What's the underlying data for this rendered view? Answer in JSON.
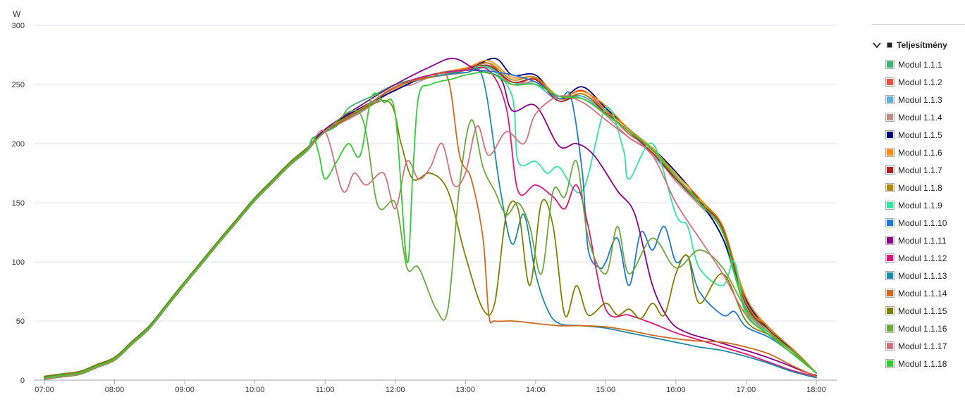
{
  "chart_data": {
    "type": "line",
    "unit_label": "W",
    "ylim": [
      0,
      300
    ],
    "yticks": [
      0,
      50,
      100,
      150,
      200,
      250,
      300
    ],
    "xlim": [
      "07:00",
      "18:10"
    ],
    "xticks": [
      "07:00",
      "08:00",
      "09:00",
      "10:00",
      "11:00",
      "12:00",
      "13:00",
      "14:00",
      "15:00",
      "16:00",
      "17:00",
      "18:00"
    ],
    "grid": true,
    "legend_position": "right",
    "legend_group": "Teljesítmény",
    "base_curve": {
      "x": [
        "07:00",
        "07:30",
        "08:00",
        "08:30",
        "09:00",
        "09:30",
        "10:00",
        "10:30",
        "11:00",
        "11:30",
        "12:00",
        "12:30",
        "13:00",
        "13:30",
        "14:00",
        "14:30",
        "15:00",
        "15:30",
        "16:00",
        "16:30",
        "17:00",
        "17:30",
        "18:00",
        "18:10"
      ],
      "y": [
        2,
        6,
        18,
        45,
        82,
        118,
        153,
        183,
        208,
        228,
        247,
        255,
        262,
        262,
        254,
        242,
        228,
        210,
        175,
        150,
        70,
        40,
        6,
        0
      ]
    },
    "series": [
      {
        "name": "Modul 1.1.1",
        "color": "#3cb371",
        "x": [
          "10:50",
          "11:10",
          "11:20",
          "11:40",
          "12:00",
          "12:20",
          "12:40",
          "13:00",
          "13:20",
          "13:40",
          "14:00",
          "14:20",
          "14:40",
          "15:00",
          "15:20",
          "15:40",
          "16:00",
          "16:20",
          "16:40",
          "17:00",
          "17:20",
          "17:40",
          "18:00"
        ],
        "y": [
          205,
          215,
          230,
          240,
          250,
          255,
          258,
          262,
          265,
          250,
          255,
          240,
          240,
          225,
          210,
          195,
          170,
          150,
          120,
          60,
          40,
          25,
          6
        ]
      },
      {
        "name": "Modul 1.1.2",
        "color": "#e8503a",
        "x": [
          "11:00",
          "11:30",
          "12:00",
          "12:30",
          "13:00",
          "13:20",
          "13:40",
          "14:00",
          "14:20",
          "14:40",
          "15:00",
          "15:20",
          "15:40",
          "16:00",
          "16:20",
          "16:40",
          "17:00",
          "17:20",
          "17:40",
          "18:00"
        ],
        "y": [
          210,
          228,
          248,
          258,
          263,
          268,
          250,
          255,
          238,
          245,
          228,
          208,
          195,
          172,
          150,
          130,
          65,
          42,
          25,
          6
        ]
      },
      {
        "name": "Modul 1.1.3",
        "color": "#5dade2",
        "x": [
          "11:00",
          "11:30",
          "12:00",
          "12:30",
          "13:00",
          "13:20",
          "13:40",
          "14:00",
          "14:20",
          "14:40",
          "15:00",
          "15:20",
          "15:40",
          "16:00",
          "16:20",
          "16:40",
          "17:00",
          "17:20",
          "17:40",
          "18:00"
        ],
        "y": [
          210,
          227,
          247,
          256,
          262,
          266,
          252,
          250,
          236,
          240,
          225,
          210,
          190,
          170,
          148,
          125,
          62,
          40,
          24,
          6
        ]
      },
      {
        "name": "Modul 1.1.4",
        "color": "#c48a8a",
        "x": [
          "11:00",
          "11:30",
          "12:00",
          "12:15",
          "12:30",
          "13:00",
          "13:20",
          "13:40",
          "14:00",
          "14:20",
          "14:40",
          "15:00",
          "15:20",
          "15:40",
          "16:00",
          "16:20",
          "16:40",
          "17:00",
          "17:20",
          "17:40",
          "18:00"
        ],
        "y": [
          210,
          226,
          246,
          250,
          256,
          260,
          264,
          250,
          252,
          238,
          238,
          224,
          205,
          192,
          168,
          148,
          125,
          60,
          40,
          24,
          6
        ]
      },
      {
        "name": "Modul 1.1.5",
        "color": "#000080",
        "x": [
          "11:00",
          "11:30",
          "12:00",
          "12:30",
          "13:00",
          "13:25",
          "13:40",
          "14:00",
          "14:20",
          "14:40",
          "15:00",
          "15:20",
          "15:40",
          "16:00",
          "16:20",
          "16:40",
          "17:00",
          "17:20",
          "17:40",
          "18:00"
        ],
        "y": [
          212,
          230,
          245,
          258,
          262,
          272,
          258,
          258,
          238,
          248,
          230,
          212,
          196,
          176,
          152,
          120,
          68,
          42,
          26,
          6
        ]
      },
      {
        "name": "Modul 1.1.6",
        "color": "#ff8c1a",
        "x": [
          "11:00",
          "11:30",
          "12:00",
          "12:30",
          "13:00",
          "13:20",
          "13:40",
          "14:00",
          "14:20",
          "14:40",
          "15:00",
          "15:20",
          "15:40",
          "16:00",
          "16:20",
          "16:40",
          "17:00",
          "17:20",
          "17:40",
          "18:00"
        ],
        "y": [
          211,
          229,
          247,
          258,
          264,
          270,
          256,
          256,
          240,
          244,
          232,
          212,
          196,
          174,
          154,
          128,
          70,
          44,
          26,
          6
        ]
      },
      {
        "name": "Modul 1.1.7",
        "color": "#b22222",
        "x": [
          "11:00",
          "11:30",
          "12:00",
          "12:30",
          "13:00",
          "13:20",
          "13:40",
          "14:00",
          "14:20",
          "14:40",
          "15:00",
          "15:20",
          "15:40",
          "16:00",
          "16:20",
          "16:40",
          "17:00",
          "17:20",
          "17:40",
          "18:00"
        ],
        "y": [
          210,
          228,
          248,
          258,
          262,
          266,
          252,
          254,
          236,
          242,
          226,
          210,
          192,
          170,
          150,
          128,
          64,
          42,
          24,
          6
        ]
      },
      {
        "name": "Modul 1.1.8",
        "color": "#b8860b",
        "x": [
          "11:00",
          "11:30",
          "12:00",
          "12:30",
          "13:00",
          "13:20",
          "13:40",
          "14:00",
          "14:20",
          "14:40",
          "15:00",
          "15:20",
          "15:40",
          "16:00",
          "16:20",
          "16:40",
          "17:00",
          "17:20",
          "17:40",
          "18:00"
        ],
        "y": [
          210,
          228,
          248,
          258,
          262,
          268,
          254,
          256,
          238,
          242,
          228,
          212,
          194,
          172,
          152,
          130,
          66,
          44,
          26,
          6
        ]
      },
      {
        "name": "Modul 1.1.9",
        "color": "#2ee89a",
        "x": [
          "11:00",
          "11:30",
          "12:00",
          "12:30",
          "13:00",
          "13:20",
          "13:40",
          "13:45",
          "14:00",
          "14:10",
          "14:20",
          "14:40",
          "15:00",
          "15:15",
          "15:20",
          "15:40",
          "16:00",
          "16:10",
          "16:20",
          "16:40",
          "16:50",
          "17:00",
          "17:20",
          "17:40",
          "18:00"
        ],
        "y": [
          210,
          228,
          248,
          258,
          262,
          264,
          240,
          185,
          185,
          175,
          180,
          160,
          230,
          195,
          170,
          200,
          140,
          130,
          95,
          80,
          100,
          55,
          40,
          24,
          6
        ]
      },
      {
        "name": "Modul 1.1.10",
        "color": "#1e7ad6",
        "x": [
          "11:00",
          "11:30",
          "12:00",
          "12:30",
          "13:00",
          "13:30",
          "14:00",
          "14:20",
          "14:30",
          "14:40",
          "14:45",
          "14:55",
          "15:00",
          "15:10",
          "15:20",
          "15:30",
          "15:40",
          "15:50",
          "16:00",
          "16:10",
          "16:20",
          "16:40",
          "16:50",
          "17:00",
          "17:20",
          "17:40",
          "18:00"
        ],
        "y": [
          210,
          228,
          248,
          258,
          262,
          260,
          252,
          238,
          240,
          175,
          110,
          95,
          100,
          120,
          80,
          125,
          110,
          130,
          100,
          105,
          75,
          55,
          58,
          45,
          36,
          22,
          6
        ]
      },
      {
        "name": "Modul 1.1.11",
        "color": "#8b008b",
        "x": [
          "11:00",
          "11:30",
          "12:00",
          "12:30",
          "12:50",
          "13:10",
          "13:30",
          "13:40",
          "14:00",
          "14:20",
          "14:35",
          "14:50",
          "15:10",
          "15:25",
          "15:40",
          "15:55",
          "16:10",
          "16:30",
          "16:50",
          "17:10",
          "17:30",
          "17:50",
          "18:00"
        ],
        "y": [
          212,
          232,
          250,
          265,
          272,
          262,
          255,
          228,
          232,
          198,
          200,
          190,
          160,
          140,
          80,
          50,
          40,
          34,
          28,
          22,
          15,
          7,
          4
        ]
      },
      {
        "name": "Modul 1.1.12",
        "color": "#e0157a",
        "x": [
          "11:00",
          "11:30",
          "12:00",
          "12:30",
          "13:00",
          "13:20",
          "13:35",
          "13:45",
          "14:00",
          "14:15",
          "14:25",
          "14:35",
          "14:45",
          "15:00",
          "15:20",
          "15:40",
          "16:00",
          "16:20",
          "16:40",
          "17:00",
          "17:20",
          "17:40",
          "18:00"
        ],
        "y": [
          210,
          228,
          248,
          258,
          262,
          262,
          230,
          160,
          165,
          155,
          145,
          165,
          130,
          60,
          55,
          48,
          40,
          34,
          28,
          22,
          15,
          8,
          3
        ]
      },
      {
        "name": "Modul 1.1.13",
        "color": "#1a8ca8",
        "x": [
          "11:00",
          "11:30",
          "12:00",
          "12:30",
          "13:00",
          "13:15",
          "13:30",
          "13:40",
          "13:50",
          "14:00",
          "14:10",
          "14:20",
          "14:40",
          "15:00",
          "15:20",
          "15:40",
          "16:00",
          "16:20",
          "16:40",
          "17:00",
          "17:20",
          "17:40",
          "18:00"
        ],
        "y": [
          210,
          228,
          248,
          256,
          260,
          255,
          160,
          115,
          140,
          90,
          60,
          48,
          46,
          44,
          40,
          36,
          32,
          28,
          25,
          20,
          14,
          7,
          2
        ]
      },
      {
        "name": "Modul 1.1.14",
        "color": "#d2691e",
        "x": [
          "11:00",
          "11:30",
          "12:00",
          "12:30",
          "12:45",
          "12:55",
          "13:05",
          "13:15",
          "13:20",
          "13:25",
          "13:40",
          "14:00",
          "14:20",
          "14:40",
          "15:00",
          "15:20",
          "15:40",
          "16:00",
          "16:20",
          "16:40",
          "17:00",
          "17:20",
          "17:40",
          "18:00"
        ],
        "y": [
          210,
          228,
          248,
          256,
          255,
          190,
          170,
          120,
          55,
          50,
          50,
          48,
          46,
          46,
          45,
          42,
          38,
          35,
          33,
          32,
          28,
          22,
          12,
          3
        ]
      },
      {
        "name": "Modul 1.1.15",
        "color": "#808000",
        "x": [
          "11:00",
          "11:30",
          "11:55",
          "12:05",
          "12:15",
          "12:30",
          "12:45",
          "13:00",
          "13:15",
          "13:25",
          "13:35",
          "13:45",
          "13:55",
          "14:05",
          "14:15",
          "14:25",
          "14:35",
          "14:45",
          "15:00",
          "15:10",
          "15:20",
          "15:30",
          "15:40",
          "15:50",
          "16:00",
          "16:10",
          "16:20",
          "16:40",
          "17:00",
          "17:20",
          "17:40",
          "18:00"
        ],
        "y": [
          210,
          228,
          235,
          200,
          170,
          175,
          160,
          105,
          60,
          65,
          140,
          145,
          80,
          150,
          130,
          55,
          80,
          55,
          65,
          55,
          60,
          52,
          65,
          55,
          90,
          105,
          65,
          90,
          50,
          38,
          24,
          6
        ]
      },
      {
        "name": "Modul 1.1.16",
        "color": "#6aaa3a",
        "x": [
          "11:00",
          "11:30",
          "11:45",
          "12:00",
          "12:10",
          "12:20",
          "12:35",
          "12:45",
          "12:55",
          "13:05",
          "13:15",
          "13:25",
          "13:35",
          "13:45",
          "13:55",
          "14:05",
          "14:15",
          "14:25",
          "14:35",
          "14:45",
          "15:00",
          "15:10",
          "15:20",
          "15:40",
          "16:00",
          "16:20",
          "16:40",
          "17:00",
          "17:20",
          "17:40",
          "18:00"
        ],
        "y": [
          210,
          225,
          148,
          150,
          95,
          95,
          60,
          60,
          165,
          220,
          180,
          160,
          140,
          150,
          130,
          90,
          160,
          155,
          185,
          120,
          90,
          130,
          90,
          120,
          95,
          110,
          95,
          60,
          40,
          24,
          6
        ]
      },
      {
        "name": "Modul 1.1.17",
        "color": "#d4707a",
        "x": [
          "11:00",
          "11:15",
          "11:25",
          "11:35",
          "11:50",
          "12:00",
          "12:10",
          "12:20",
          "12:30",
          "12:40",
          "12:50",
          "13:00",
          "13:10",
          "13:20",
          "13:35",
          "13:50",
          "14:00",
          "14:20",
          "14:40",
          "15:00",
          "15:20",
          "15:40",
          "16:00",
          "16:20",
          "16:40",
          "17:00",
          "17:20",
          "17:40",
          "18:00"
        ],
        "y": [
          210,
          160,
          175,
          165,
          175,
          145,
          185,
          170,
          180,
          200,
          165,
          175,
          215,
          190,
          210,
          200,
          225,
          240,
          235,
          220,
          205,
          190,
          150,
          120,
          90,
          55,
          38,
          22,
          6
        ]
      },
      {
        "name": "Modul 1.1.18",
        "color": "#32cd32",
        "x": [
          "10:50",
          "10:55",
          "11:00",
          "11:10",
          "11:20",
          "11:30",
          "11:40",
          "11:50",
          "12:00",
          "12:10",
          "12:15",
          "12:20",
          "12:30",
          "12:50",
          "13:00",
          "13:20",
          "13:40",
          "14:00",
          "14:20",
          "14:40",
          "15:00",
          "15:20",
          "15:40",
          "16:00",
          "16:20",
          "16:40",
          "17:00",
          "17:20",
          "17:40",
          "18:00"
        ],
        "y": [
          205,
          190,
          170,
          185,
          200,
          190,
          240,
          235,
          225,
          100,
          175,
          240,
          250,
          255,
          258,
          260,
          250,
          250,
          240,
          238,
          225,
          210,
          195,
          172,
          150,
          125,
          58,
          38,
          22,
          6
        ]
      }
    ]
  }
}
